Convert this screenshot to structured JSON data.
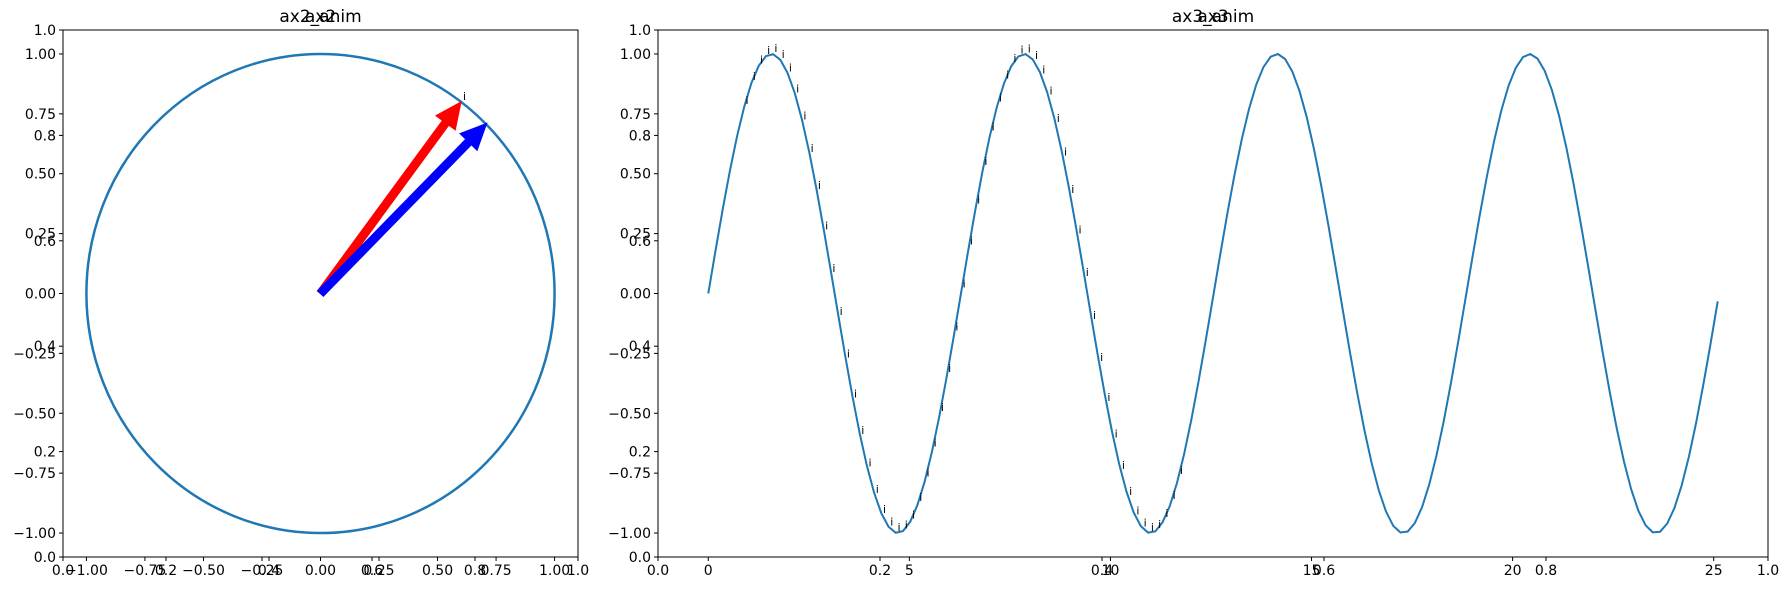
{
  "chart_data": [
    {
      "type": "line",
      "title": "ax2_anim",
      "overlaid_title": "ax2",
      "xlim": [
        -1.1,
        1.1
      ],
      "ylim": [
        -1.1,
        1.1
      ],
      "xticks": [
        -1.0,
        -0.75,
        -0.5,
        -0.25,
        0.0,
        0.25,
        0.5,
        0.75,
        1.0
      ],
      "xtick_labels": [
        "−1.00",
        "−0.75",
        "−0.50",
        "−0.25",
        "0.00",
        "0.25",
        "0.50",
        "0.75",
        "1.00"
      ],
      "yticks": [
        -1.0,
        -0.75,
        -0.5,
        -0.25,
        0.0,
        0.25,
        0.5,
        0.75,
        1.0
      ],
      "ytick_labels": [
        "−1.00",
        "−0.75",
        "−0.50",
        "−0.25",
        "0.00",
        "0.25",
        "0.50",
        "0.75",
        "1.00"
      ],
      "background_axis": {
        "xlim": [
          0.0,
          1.0
        ],
        "ylim": [
          0.0,
          1.0
        ],
        "xticks": [
          0.0,
          0.2,
          0.4,
          0.6,
          0.8,
          1.0
        ],
        "xtick_labels": [
          "0.0",
          "0.2",
          "0.4",
          "0.6",
          "0.8",
          "1.0"
        ],
        "yticks": [
          0.0,
          0.2,
          0.4,
          0.6,
          0.8,
          1.0
        ],
        "ytick_labels": [
          "0.0",
          "0.2",
          "0.4",
          "0.6",
          "0.8",
          "1.0"
        ]
      },
      "series": [
        {
          "kind": "circle",
          "center": [
            0,
            0
          ],
          "radius": 1.0,
          "color": "#1f77b4"
        }
      ],
      "arrows": [
        {
          "from": [
            0,
            0
          ],
          "to": [
            0.6,
            0.8
          ],
          "color": "#ff0000"
        },
        {
          "from": [
            0,
            0
          ],
          "to": [
            0.71,
            0.71
          ],
          "color": "#0000ff"
        }
      ],
      "annotations": [
        {
          "text": "i",
          "x": 0.6,
          "y": 0.8
        }
      ]
    },
    {
      "type": "line",
      "title": "ax3_anim",
      "overlaid_title": "ax3",
      "xlim": [
        -1.25,
        26.35
      ],
      "ylim": [
        -1.1,
        1.1
      ],
      "xticks": [
        0,
        5,
        10,
        15,
        20,
        25
      ],
      "xtick_labels": [
        "0",
        "5",
        "10",
        "15",
        "20",
        "25"
      ],
      "yticks": [
        -1.0,
        -0.75,
        -0.5,
        -0.25,
        0.0,
        0.25,
        0.5,
        0.75,
        1.0
      ],
      "ytick_labels": [
        "−1.00",
        "−0.75",
        "−0.50",
        "−0.25",
        "0.00",
        "0.25",
        "0.50",
        "0.75",
        "1.00"
      ],
      "background_axis": {
        "xlim": [
          0.0,
          1.0
        ],
        "ylim": [
          0.0,
          1.0
        ],
        "xticks": [
          0.0,
          0.2,
          0.4,
          0.6,
          0.8,
          1.0
        ],
        "xtick_labels": [
          "0.0",
          "0.2",
          "0.4",
          "0.6",
          "0.8",
          "1.0"
        ],
        "yticks": [
          0.0,
          0.2,
          0.4,
          0.6,
          0.8,
          1.0
        ],
        "ytick_labels": [
          "0.0",
          "0.2",
          "0.4",
          "0.6",
          "0.8",
          "1.0"
        ]
      },
      "series": [
        {
          "kind": "function",
          "function": "sin(x)",
          "x_range": [
            0,
            25.1
          ],
          "color": "#1f77b4"
        }
      ],
      "annotation_marker": "i",
      "annotation_x_range": [
        0.9,
        11.8
      ],
      "annotation_x_step": 0.18
    }
  ]
}
